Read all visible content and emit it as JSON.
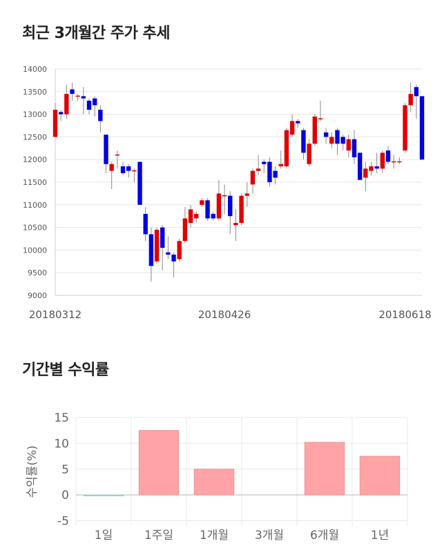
{
  "headings": {
    "price_trend": "최근 3개월간 주가 추세",
    "returns": "기간별 수익률"
  },
  "colors": {
    "up": "#e00000",
    "down": "#0000e0",
    "wick": "#888888",
    "bar": "#ffa3a6",
    "bar_negative": "#a8dde0"
  },
  "chart_data": [
    {
      "type": "candlestick",
      "ylim": [
        9000,
        14000
      ],
      "yticks": [
        9000,
        9500,
        10000,
        10500,
        11000,
        11500,
        12000,
        12500,
        13000,
        13500,
        14000
      ],
      "xtick_labels": [
        {
          "index": 0,
          "label": "20180312"
        },
        {
          "index": 30,
          "label": "20180426"
        },
        {
          "index": 62,
          "label": "20180618"
        }
      ],
      "candles": [
        [
          12500,
          13100,
          13250,
          12500
        ],
        [
          13050,
          13000,
          13100,
          12850
        ],
        [
          13000,
          13450,
          13650,
          12900
        ],
        [
          13550,
          13450,
          13700,
          13300
        ],
        [
          13400,
          13400,
          13450,
          13300
        ],
        [
          13400,
          13350,
          13600,
          13000
        ],
        [
          13300,
          13100,
          13350,
          13000
        ],
        [
          13350,
          13200,
          13400,
          12950
        ],
        [
          13100,
          12850,
          13200,
          12600
        ],
        [
          12550,
          11900,
          12550,
          11700
        ],
        [
          11750,
          11900,
          11950,
          11350
        ],
        [
          12100,
          12100,
          12200,
          11800
        ],
        [
          11850,
          11700,
          11950,
          11650
        ],
        [
          11850,
          11750,
          11900,
          11600
        ],
        [
          11750,
          11750,
          11800,
          11500
        ],
        [
          11950,
          11000,
          11950,
          11000
        ],
        [
          10800,
          10350,
          10950,
          10200
        ],
        [
          10350,
          9650,
          10500,
          9300
        ],
        [
          9750,
          10450,
          10500,
          9700
        ],
        [
          10500,
          10050,
          10550,
          9550
        ],
        [
          9950,
          9900,
          10300,
          9800
        ],
        [
          9900,
          9750,
          9950,
          9400
        ],
        [
          9800,
          10200,
          10250,
          9750
        ],
        [
          10200,
          10700,
          10950,
          10150
        ],
        [
          10600,
          10900,
          11000,
          10500
        ],
        [
          10700,
          10800,
          10850,
          10600
        ],
        [
          11000,
          11100,
          11150,
          10950
        ],
        [
          11100,
          10700,
          11150,
          10650
        ],
        [
          10800,
          10700,
          10850,
          10650
        ],
        [
          10700,
          11250,
          11550,
          10650
        ],
        [
          11200,
          11200,
          11450,
          10800
        ],
        [
          11200,
          10750,
          11300,
          10350
        ],
        [
          10550,
          10600,
          10900,
          10200
        ],
        [
          10600,
          11200,
          11250,
          10550
        ],
        [
          11200,
          11250,
          11500,
          10950
        ],
        [
          11450,
          11750,
          11800,
          11250
        ],
        [
          11750,
          11800,
          12100,
          11650
        ],
        [
          11950,
          11900,
          12000,
          11700
        ],
        [
          11950,
          11500,
          12050,
          11400
        ],
        [
          11750,
          11600,
          11850,
          11450
        ],
        [
          11850,
          11900,
          12200,
          11800
        ],
        [
          11850,
          12650,
          12700,
          11800
        ],
        [
          12550,
          12850,
          13000,
          12500
        ],
        [
          12850,
          12800,
          12900,
          12700
        ],
        [
          12650,
          12150,
          12700,
          12000
        ],
        [
          11900,
          12350,
          12450,
          11850
        ],
        [
          12350,
          12950,
          13000,
          12300
        ],
        [
          12900,
          12900,
          13300,
          12850
        ],
        [
          12600,
          12500,
          12700,
          12350
        ],
        [
          12350,
          12500,
          12600,
          12250
        ],
        [
          12650,
          12350,
          12700,
          12100
        ],
        [
          12500,
          12350,
          12550,
          12200
        ],
        [
          12200,
          12450,
          12550,
          12050
        ],
        [
          12450,
          12050,
          12650,
          11900
        ],
        [
          12150,
          11550,
          12150,
          11550
        ],
        [
          11600,
          11800,
          11950,
          11300
        ],
        [
          11750,
          11850,
          11950,
          11650
        ],
        [
          11850,
          11800,
          12150,
          11700
        ],
        [
          11800,
          12150,
          12200,
          11700
        ],
        [
          12200,
          11950,
          12300,
          11900
        ],
        [
          11950,
          11950,
          12100,
          11800
        ],
        [
          11950,
          11950,
          12050,
          11900
        ],
        [
          12200,
          13200,
          13250,
          12150
        ],
        [
          13200,
          13450,
          13700,
          13050
        ],
        [
          13600,
          13400,
          13650,
          12900
        ],
        [
          13400,
          12000,
          13400,
          12000
        ]
      ]
    },
    {
      "type": "bar",
      "categories": [
        "1일",
        "1주일",
        "1개월",
        "3개월",
        "6개월",
        "1년"
      ],
      "values": [
        -0.1,
        12.5,
        5.0,
        0.0,
        10.2,
        7.5
      ],
      "ylabel": "수익률(%)",
      "ylim": [
        -6,
        15
      ],
      "yticks": [
        -5,
        0,
        5,
        10,
        15
      ]
    }
  ]
}
